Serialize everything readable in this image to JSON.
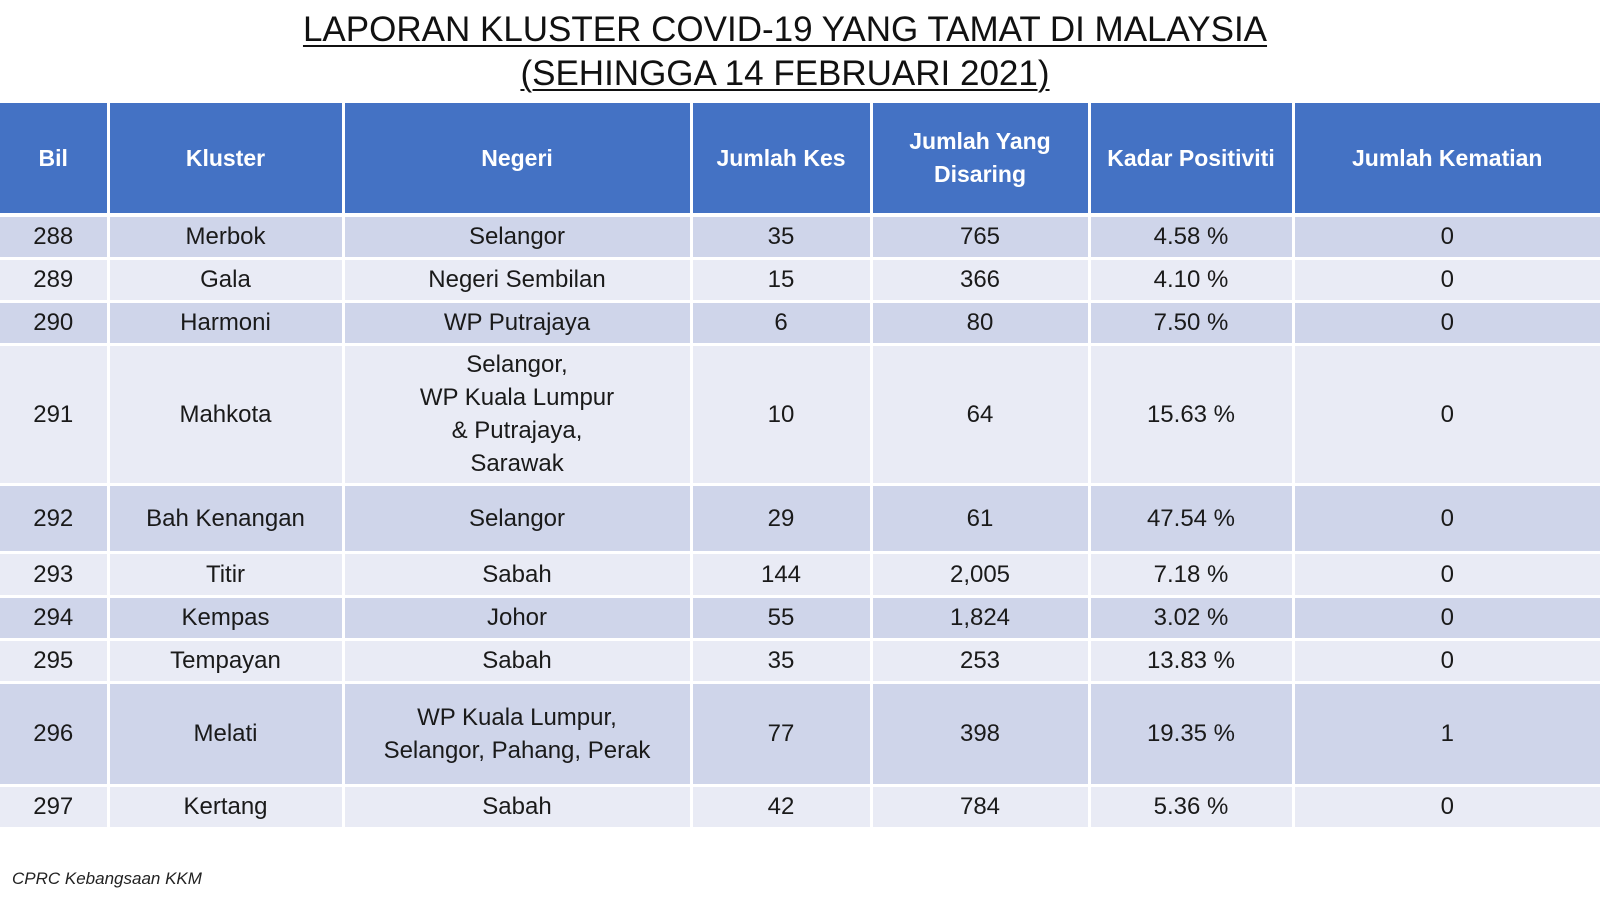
{
  "title": {
    "line1": "LAPORAN KLUSTER COVID-19 YANG TAMAT DI MALAYSIA",
    "line2": "(SEHINGGA 14 FEBRUARI 2021)"
  },
  "table": {
    "headers": {
      "bil": "Bil",
      "kluster": "Kluster",
      "negeri": "Negeri",
      "jumlah_kes": "Jumlah Kes",
      "jumlah_disaring_1": "Jumlah Yang",
      "jumlah_disaring_2": "Disaring",
      "kadar_positiviti": "Kadar Positiviti",
      "jumlah_kematian": "Jumlah Kematian"
    },
    "rows": [
      {
        "bil": "288",
        "kluster": "Merbok",
        "negeri": [
          "Selangor"
        ],
        "kes": "35",
        "disaring": "765",
        "positiviti": "4.58 %",
        "kematian": "0"
      },
      {
        "bil": "289",
        "kluster": "Gala",
        "negeri": [
          "Negeri Sembilan"
        ],
        "kes": "15",
        "disaring": "366",
        "positiviti": "4.10 %",
        "kematian": "0"
      },
      {
        "bil": "290",
        "kluster": "Harmoni",
        "negeri": [
          "WP Putrajaya"
        ],
        "kes": "6",
        "disaring": "80",
        "positiviti": "7.50 %",
        "kematian": "0"
      },
      {
        "bil": "291",
        "kluster": "Mahkota",
        "negeri": [
          "Selangor,",
          "WP Kuala Lumpur",
          "& Putrajaya,",
          "Sarawak"
        ],
        "kes": "10",
        "disaring": "64",
        "positiviti": "15.63 %",
        "kematian": "0"
      },
      {
        "bil": "292",
        "kluster": "Bah Kenangan",
        "negeri": [
          "Selangor"
        ],
        "kes": "29",
        "disaring": "61",
        "positiviti": "47.54 %",
        "kematian": "0"
      },
      {
        "bil": "293",
        "kluster": "Titir",
        "negeri": [
          "Sabah"
        ],
        "kes": "144",
        "disaring": "2,005",
        "positiviti": "7.18 %",
        "kematian": "0"
      },
      {
        "bil": "294",
        "kluster": "Kempas",
        "negeri": [
          "Johor"
        ],
        "kes": "55",
        "disaring": "1,824",
        "positiviti": "3.02 %",
        "kematian": "0"
      },
      {
        "bil": "295",
        "kluster": "Tempayan",
        "negeri": [
          "Sabah"
        ],
        "kes": "35",
        "disaring": "253",
        "positiviti": "13.83 %",
        "kematian": "0"
      },
      {
        "bil": "296",
        "kluster": "Melati",
        "negeri": [
          "WP Kuala Lumpur,",
          "Selangor, Pahang, Perak"
        ],
        "kes": "77",
        "disaring": "398",
        "positiviti": "19.35 %",
        "kematian": "1"
      },
      {
        "bil": "297",
        "kluster": "Kertang",
        "negeri": [
          "Sabah"
        ],
        "kes": "42",
        "disaring": "784",
        "positiviti": "5.36 %",
        "kematian": "0"
      }
    ]
  },
  "source": "CPRC Kebangsaan KKM",
  "colors": {
    "header_bg": "#4472c4",
    "row_dark": "#cfd5ea",
    "row_light": "#e9ebf5"
  }
}
